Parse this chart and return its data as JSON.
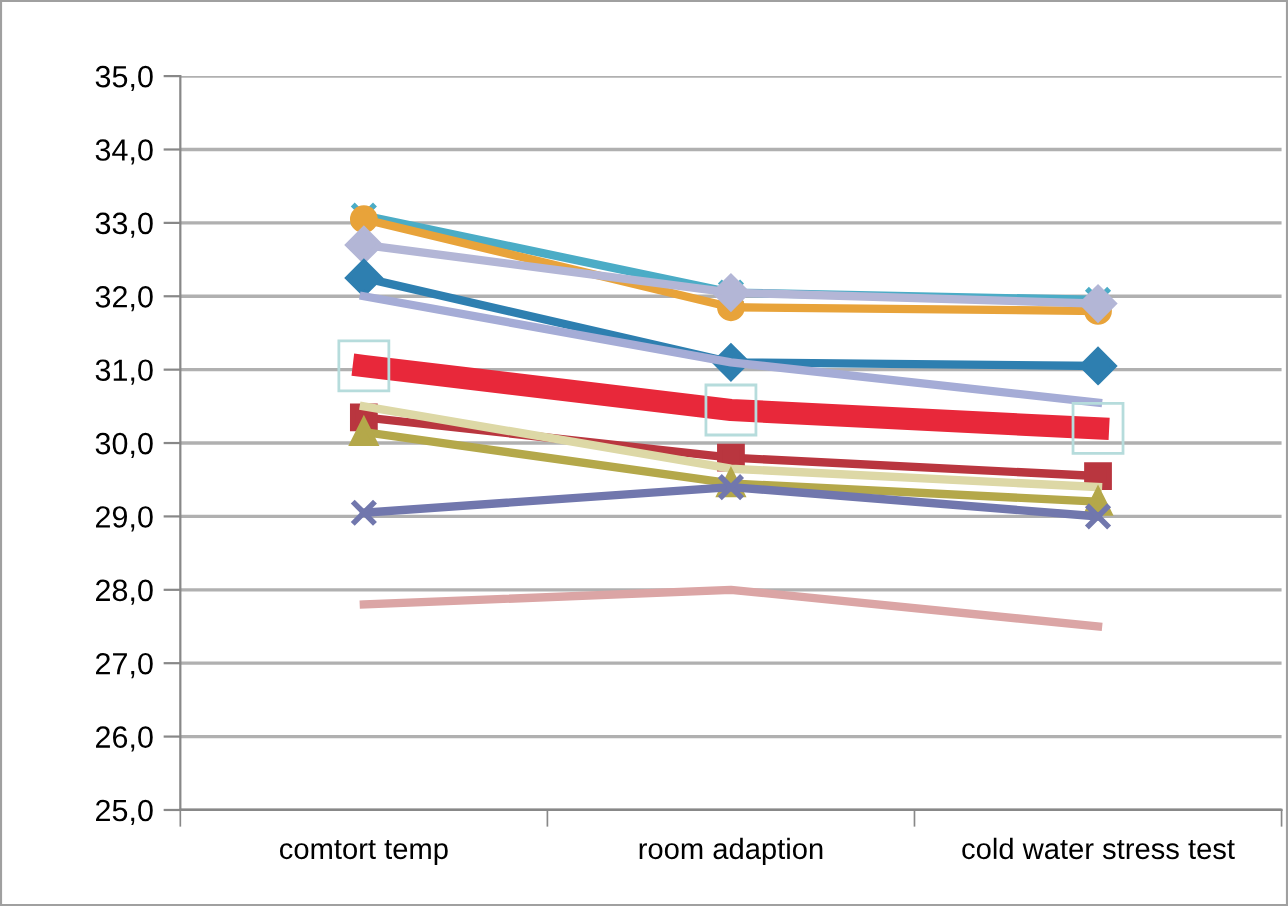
{
  "chart_data": {
    "type": "line",
    "categories": [
      "comtort temp",
      "room adaption",
      "cold water stress test"
    ],
    "ylim": [
      25,
      35
    ],
    "yticks": [
      {
        "value": 25,
        "label": "25,0"
      },
      {
        "value": 26,
        "label": "26,0"
      },
      {
        "value": 27,
        "label": "27,0"
      },
      {
        "value": 28,
        "label": "28,0"
      },
      {
        "value": 29,
        "label": "29,0"
      },
      {
        "value": 30,
        "label": "30,0"
      },
      {
        "value": 31,
        "label": "31,0"
      },
      {
        "value": 32,
        "label": "32,0"
      },
      {
        "value": 33,
        "label": "33,0"
      },
      {
        "value": 34,
        "label": "34,0"
      },
      {
        "value": 35,
        "label": "35,0"
      }
    ],
    "grid": "y",
    "series": [
      {
        "color": "#4bacc6",
        "marker": "cross",
        "values": [
          33.1,
          32.05,
          31.95
        ]
      },
      {
        "color": "#e8a33a",
        "marker": "circle",
        "values": [
          33.05,
          31.85,
          31.8
        ]
      },
      {
        "color": "#b3b6d6",
        "marker": "diamond",
        "values": [
          32.7,
          32.05,
          31.9
        ]
      },
      {
        "color": "#2e7fb0",
        "marker": "diamond",
        "values": [
          32.25,
          31.1,
          31.05
        ]
      },
      {
        "color": "#a5acd6",
        "marker": "none",
        "values": [
          32.0,
          31.1,
          30.55
        ]
      },
      {
        "color": "#e8283a",
        "marker": "square",
        "values": [
          31.05,
          30.45,
          30.2
        ]
      },
      {
        "color": "#b9363f",
        "marker": "square",
        "values": [
          30.35,
          29.8,
          29.55
        ]
      },
      {
        "color": "#ddd8a6",
        "marker": "none",
        "values": [
          30.5,
          29.65,
          29.4
        ]
      },
      {
        "color": "#b4a84a",
        "marker": "triangle",
        "values": [
          30.15,
          29.45,
          29.2
        ]
      },
      {
        "color": "#7177ad",
        "marker": "cross",
        "values": [
          29.05,
          29.4,
          29.0
        ]
      },
      {
        "color": "#dba5a5",
        "marker": "none",
        "values": [
          27.8,
          28.0,
          27.5
        ]
      }
    ]
  }
}
